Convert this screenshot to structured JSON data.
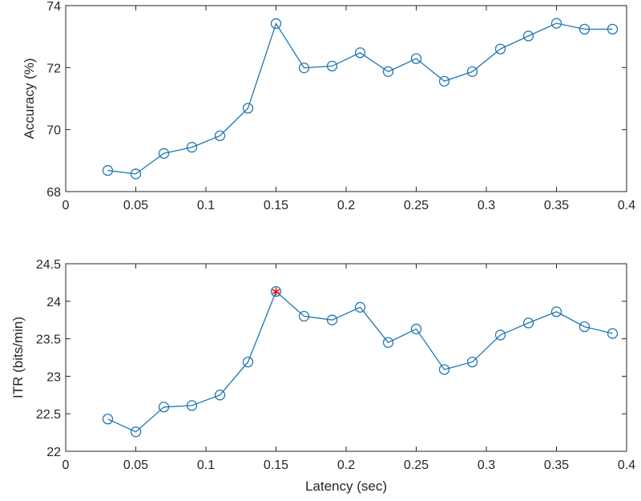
{
  "chart_data": [
    {
      "type": "line",
      "title": "",
      "xlabel": "",
      "ylabel": "Accuracy (%)",
      "xlim": [
        0,
        0.4
      ],
      "ylim": [
        68,
        74
      ],
      "xticks": [
        "0",
        "0.05",
        "0.1",
        "0.15",
        "0.2",
        "0.25",
        "0.3",
        "0.35",
        "0.4"
      ],
      "yticks": [
        "68",
        "70",
        "72",
        "74"
      ],
      "grid": false,
      "x": [
        0.03,
        0.05,
        0.07,
        0.09,
        0.11,
        0.13,
        0.15,
        0.17,
        0.19,
        0.21,
        0.23,
        0.25,
        0.27,
        0.29,
        0.31,
        0.33,
        0.35,
        0.37,
        0.39
      ],
      "series": [
        {
          "color": "#1f77b4",
          "marker": "circle",
          "values": [
            68.68,
            68.57,
            69.23,
            69.43,
            69.8,
            70.69,
            73.42,
            71.99,
            72.05,
            72.48,
            71.87,
            72.29,
            71.56,
            71.87,
            72.6,
            73.02,
            73.43,
            73.24,
            73.24
          ]
        }
      ],
      "highlight": null
    },
    {
      "type": "line",
      "title": "",
      "xlabel": "Latency (sec)",
      "ylabel": "ITR (bits/min)",
      "xlim": [
        0,
        0.4
      ],
      "ylim": [
        22,
        24.5
      ],
      "xticks": [
        "0",
        "0.05",
        "0.1",
        "0.15",
        "0.2",
        "0.25",
        "0.3",
        "0.35",
        "0.4"
      ],
      "yticks": [
        "22",
        "22.5",
        "23",
        "23.5",
        "24",
        "24.5"
      ],
      "grid": false,
      "x": [
        0.03,
        0.05,
        0.07,
        0.09,
        0.11,
        0.13,
        0.15,
        0.17,
        0.19,
        0.21,
        0.23,
        0.25,
        0.27,
        0.29,
        0.31,
        0.33,
        0.35,
        0.37,
        0.39
      ],
      "series": [
        {
          "color": "#1f77b4",
          "marker": "circle",
          "values": [
            22.43,
            22.26,
            22.59,
            22.61,
            22.75,
            23.19,
            24.13,
            23.8,
            23.75,
            23.92,
            23.45,
            23.63,
            23.09,
            23.19,
            23.55,
            23.71,
            23.86,
            23.66,
            23.57
          ]
        }
      ],
      "highlight": {
        "x": 0.15,
        "y": 24.13,
        "marker": "asterisk",
        "color": "#ff0000"
      }
    }
  ],
  "colors": {
    "line": "#1f77b4",
    "axis": "#262626",
    "highlight": "#ff0000"
  }
}
